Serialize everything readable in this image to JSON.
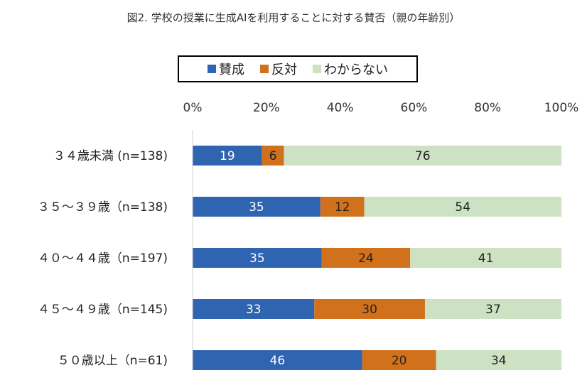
{
  "chart_data": {
    "type": "bar",
    "orientation": "horizontal",
    "stacked": "percent",
    "title": "図2. 学校の授業に生成AIを利用することに対する賛否（親の年齢別）",
    "xlabel": "",
    "ylabel": "",
    "xlim": [
      0,
      100
    ],
    "x_ticks": [
      "0%",
      "20%",
      "40%",
      "60%",
      "80%",
      "100%"
    ],
    "x_tick_values": [
      0,
      20,
      40,
      60,
      80,
      100
    ],
    "grid": false,
    "legend_placement": "top",
    "categories": [
      "３４歳未満 (n=138)",
      "３５～３９歳（n=138)",
      "４０～４４歳（n=197)",
      "４５～４９歳（n=145)",
      "５０歳以上（n=61)"
    ],
    "series": [
      {
        "name": "賛成",
        "color": "#2e64b0",
        "label_color": "#ffffff",
        "values": [
          19,
          35,
          35,
          33,
          46
        ]
      },
      {
        "name": "反対",
        "color": "#d2711c",
        "label_color": "#222222",
        "values": [
          6,
          12,
          24,
          30,
          20
        ]
      },
      {
        "name": "わからない",
        "color": "#cde2c2",
        "label_color": "#222222",
        "values": [
          76,
          54,
          41,
          37,
          34
        ]
      }
    ]
  }
}
